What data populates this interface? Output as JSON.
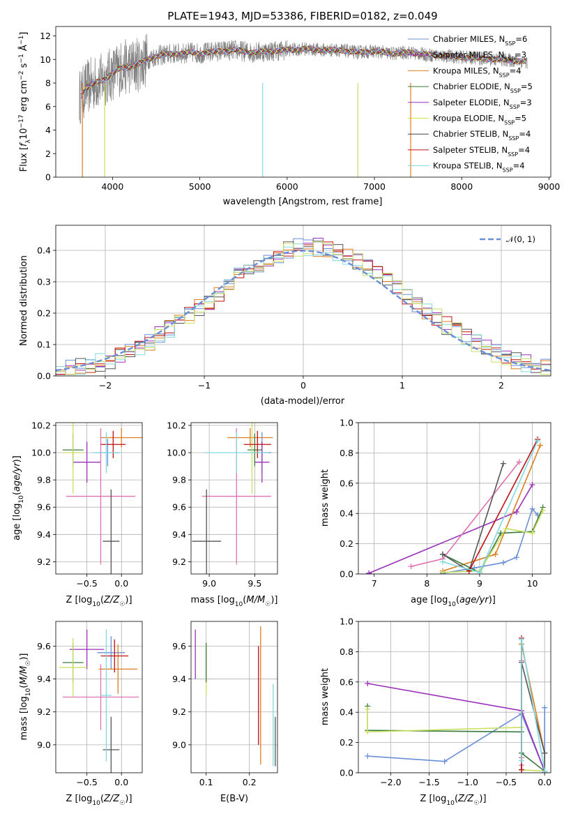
{
  "chart_data": [
    {
      "type": "line",
      "name": "spectrum",
      "title": "PLATE=1943, MJD=53386, FIBERID=0182, z=0.049",
      "xlabel": "wavelength [Angstrom, rest frame]",
      "ylabel": "Flux [f_λ10^-17 erg cm^-2 s^-1 Å^-1]",
      "xlim": [
        3350,
        9020
      ],
      "ylim": [
        0,
        12.8
      ],
      "xticks": [
        4000,
        5000,
        6000,
        7000,
        8000,
        9000
      ],
      "yticks": [
        0,
        2,
        4,
        6,
        8,
        10,
        12
      ],
      "grid": false,
      "legend_position": "top-right",
      "data_color": "#808080",
      "continuum": {
        "x": [
          3620,
          3650,
          3700,
          3800,
          3900,
          4000,
          4100,
          4200,
          4300,
          4400,
          4500,
          4600,
          4700,
          4800,
          4900,
          5000,
          5200,
          5400,
          5600,
          5800,
          6000,
          6200,
          6400,
          6600,
          6800,
          7000,
          7200,
          7400,
          7600,
          7800,
          8000,
          8200,
          8400,
          8600,
          8750
        ],
        "y": [
          6.8,
          7.0,
          7.6,
          8.0,
          8.3,
          8.8,
          9.3,
          9.4,
          9.6,
          10.0,
          10.3,
          10.4,
          10.5,
          10.5,
          10.6,
          10.5,
          10.7,
          10.8,
          10.6,
          10.7,
          10.8,
          10.9,
          10.8,
          10.8,
          10.6,
          10.7,
          10.5,
          10.6,
          10.4,
          10.3,
          10.2,
          10.1,
          10.0,
          9.9,
          9.8
        ]
      },
      "series": [
        {
          "name": "Chabrier MILES, N_SSP=6",
          "color": "#6a8fd8"
        },
        {
          "name": "Salpeter MILES, N_SSP=3",
          "color": "#9b30b8"
        },
        {
          "name": "Kroupa MILES, N_SSP=4",
          "color": "#e07d20"
        },
        {
          "name": "Chabrier ELODIE, N_SSP=5",
          "color": "#3a7a3a"
        },
        {
          "name": "Salpeter ELODIE, N_SSP=3",
          "color": "#9b30b8"
        },
        {
          "name": "Kroupa ELODIE, N_SSP=5",
          "color": "#d8e040"
        },
        {
          "name": "Chabrier STELIB, N_SSP=4",
          "color": "#444444"
        },
        {
          "name": "Salpeter STELIB, N_SSP=4",
          "color": "#c01010"
        },
        {
          "name": "Kroupa STELIB, N_SSP=4",
          "color": "#80d8e0"
        }
      ]
    },
    {
      "type": "line",
      "name": "residual-histogram",
      "xlabel": "(data-model)/error",
      "ylabel": "Normed distribution",
      "xlim": [
        -2.5,
        2.5
      ],
      "ylim": [
        0,
        0.48
      ],
      "xticks": [
        -2,
        -1,
        0,
        1,
        2
      ],
      "yticks": [
        0.0,
        0.1,
        0.2,
        0.3,
        0.4
      ],
      "grid": true,
      "legend_position": "top-right",
      "legend": "𝒩(0, 1)",
      "gauss_color": "#6a8fd8",
      "bin_width": 0.1,
      "colors": [
        "#6a8fd8",
        "#9b30b8",
        "#e07d20",
        "#555555",
        "#c01010",
        "#80d8e0",
        "#c8e060"
      ]
    },
    {
      "type": "scatter",
      "name": "Z-vs-age",
      "xlabel": "Z [log10(Z/Z☉)]",
      "ylabel": "age  [log10(age/yr)]",
      "xlim": [
        -0.95,
        0.3
      ],
      "ylim": [
        9.11,
        10.22
      ],
      "xticks": [
        -0.5,
        0.0
      ],
      "yticks": [
        9.2,
        9.4,
        9.6,
        9.8,
        10.0,
        10.2
      ],
      "grid": true,
      "points": [
        {
          "x": -0.2,
          "y": 10.0,
          "xerr": 0.18,
          "yerr": 0.1,
          "color": "#6a8fd8"
        },
        {
          "x": -0.5,
          "y": 9.93,
          "xerr": 0.2,
          "yerr": 0.15,
          "color": "#9b30b8"
        },
        {
          "x": 0.0,
          "y": 10.11,
          "xerr": 0.3,
          "yerr": 0.07,
          "color": "#e07d20"
        },
        {
          "x": -0.7,
          "y": 10.02,
          "xerr": 0.15,
          "yerr": 0.12,
          "color": "#3a7a3a"
        },
        {
          "x": -0.3,
          "y": 9.68,
          "xerr": 0.5,
          "yerr": 0.5,
          "color": "#e070b0"
        },
        {
          "x": -0.7,
          "y": 10.0,
          "xerr": 0.15,
          "yerr": 0.3,
          "color": "#c8e060"
        },
        {
          "x": -0.15,
          "y": 9.35,
          "xerr": 0.12,
          "yerr": 0.38,
          "color": "#555555"
        },
        {
          "x": -0.12,
          "y": 10.06,
          "xerr": 0.18,
          "yerr": 0.1,
          "color": "#c01010"
        },
        {
          "x": -0.22,
          "y": 10.0,
          "xerr": 0.2,
          "yerr": 0.15,
          "color": "#80d8e0"
        }
      ]
    },
    {
      "type": "scatter",
      "name": "mass-vs-age",
      "xlabel": "mass [log10(M/M☉)]",
      "xlim": [
        8.8,
        9.75
      ],
      "ylim": [
        9.11,
        10.22
      ],
      "xticks": [
        9.0,
        9.5
      ],
      "yticks": [
        9.2,
        9.4,
        9.6,
        9.8,
        10.0,
        10.2
      ],
      "grid": true,
      "points": [
        {
          "x": 9.58,
          "y": 10.0,
          "xerr": 0.1,
          "yerr": 0.15,
          "color": "#6a8fd8"
        },
        {
          "x": 9.58,
          "y": 9.93,
          "xerr": 0.08,
          "yerr": 0.15,
          "color": "#9b30b8"
        },
        {
          "x": 9.45,
          "y": 10.11,
          "xerr": 0.25,
          "yerr": 0.07,
          "color": "#e07d20"
        },
        {
          "x": 9.5,
          "y": 10.02,
          "xerr": 0.08,
          "yerr": 0.12,
          "color": "#3a7a3a"
        },
        {
          "x": 9.3,
          "y": 9.68,
          "xerr": 0.38,
          "yerr": 0.5,
          "color": "#e070b0"
        },
        {
          "x": 9.47,
          "y": 10.0,
          "xerr": 0.1,
          "yerr": 0.3,
          "color": "#c8e060"
        },
        {
          "x": 8.97,
          "y": 9.35,
          "xerr": 0.16,
          "yerr": 0.38,
          "color": "#555555"
        },
        {
          "x": 9.53,
          "y": 10.06,
          "xerr": 0.15,
          "yerr": 0.1,
          "color": "#c01010"
        },
        {
          "x": 9.3,
          "y": 10.0,
          "xerr": 0.35,
          "yerr": 0.15,
          "color": "#80d8e0"
        }
      ]
    },
    {
      "type": "line",
      "name": "age-weights",
      "xlabel": "age  [log10(age/yr)]",
      "ylabel": "mass weight",
      "xlim": [
        6.7,
        10.35
      ],
      "ylim": [
        0,
        1
      ],
      "xticks": [
        7,
        8,
        9,
        10
      ],
      "yticks": [
        0.0,
        0.2,
        0.4,
        0.6,
        0.8,
        1.0
      ],
      "grid": true,
      "series": [
        {
          "color": "#6a8fd8",
          "x": [
            8.3,
            8.9,
            9.45,
            9.7,
            10.0,
            10.1
          ],
          "y": [
            0.005,
            0.04,
            0.075,
            0.11,
            0.43,
            0.39
          ]
        },
        {
          "color": "#9b30b8",
          "x": [
            6.9,
            9.7,
            10.0
          ],
          "y": [
            0.005,
            0.41,
            0.59
          ]
        },
        {
          "color": "#e07d20",
          "x": [
            8.3,
            9.3,
            10.15
          ],
          "y": [
            0.02,
            0.13,
            0.85
          ]
        },
        {
          "color": "#3a7a3a",
          "x": [
            8.3,
            9.0,
            9.4,
            10.0,
            10.2
          ],
          "y": [
            0.13,
            0.01,
            0.27,
            0.28,
            0.44
          ]
        },
        {
          "color": "#e070b0",
          "x": [
            7.7,
            8.3,
            9.75
          ],
          "y": [
            0.05,
            0.1,
            0.74
          ]
        },
        {
          "color": "#c8e060",
          "x": [
            8.3,
            9.0,
            9.5,
            10.0,
            10.2
          ],
          "y": [
            0.01,
            0.02,
            0.3,
            0.27,
            0.42
          ]
        },
        {
          "color": "#555555",
          "x": [
            8.3,
            8.8,
            9.45
          ],
          "y": [
            0.13,
            0.02,
            0.73
          ]
        },
        {
          "color": "#c01010",
          "x": [
            8.8,
            10.1
          ],
          "y": [
            0.02,
            0.89
          ]
        },
        {
          "color": "#80d8e0",
          "x": [
            8.3,
            9.0,
            10.1
          ],
          "y": [
            0.08,
            0.01,
            0.88
          ]
        }
      ]
    },
    {
      "type": "scatter",
      "name": "Z-vs-mass",
      "xlabel": "Z [log10(Z/Z☉)]",
      "ylabel": "mass [log10(M/M☉)]",
      "xlim": [
        -0.95,
        0.3
      ],
      "ylim": [
        8.83,
        9.75
      ],
      "xticks": [
        -0.5,
        0.0
      ],
      "yticks": [
        9.0,
        9.2,
        9.4,
        9.6
      ],
      "grid": true,
      "points": [
        {
          "x": -0.15,
          "y": 9.56,
          "xerr": 0.2,
          "yerr": 0.1,
          "color": "#6a8fd8"
        },
        {
          "x": -0.5,
          "y": 9.58,
          "xerr": 0.25,
          "yerr": 0.12,
          "color": "#9b30b8"
        },
        {
          "x": -0.05,
          "y": 9.46,
          "xerr": 0.28,
          "yerr": 0.15,
          "color": "#e07d20"
        },
        {
          "x": -0.7,
          "y": 9.5,
          "xerr": 0.15,
          "yerr": 0.12,
          "color": "#3a7a3a"
        },
        {
          "x": -0.3,
          "y": 9.29,
          "xerr": 0.55,
          "yerr": 0.2,
          "color": "#e070b0"
        },
        {
          "x": -0.7,
          "y": 9.47,
          "xerr": 0.2,
          "yerr": 0.18,
          "color": "#c8e060"
        },
        {
          "x": -0.15,
          "y": 8.97,
          "xerr": 0.12,
          "yerr": 0.2,
          "color": "#555555"
        },
        {
          "x": -0.1,
          "y": 9.54,
          "xerr": 0.2,
          "yerr": 0.1,
          "color": "#c01010"
        },
        {
          "x": -0.22,
          "y": 9.3,
          "xerr": 0.08,
          "yerr": 0.4,
          "color": "#80d8e0"
        }
      ]
    },
    {
      "type": "scatter",
      "name": "EBV-vs-mass",
      "xlabel": "E(B-V)",
      "xlim": [
        0.065,
        0.265
      ],
      "ylim": [
        8.83,
        9.75
      ],
      "xticks": [
        0.1,
        0.2
      ],
      "yticks": [
        9.0,
        9.2,
        9.4,
        9.6
      ],
      "grid": true,
      "points": [
        {
          "x": 0.075,
          "y": 9.55,
          "yerr": 0.15,
          "color": "#9b30b8"
        },
        {
          "x": 0.1,
          "y": 9.46,
          "yerr": 0.16,
          "color": "#c8e060"
        },
        {
          "x": 0.1,
          "y": 9.5,
          "yerr": 0.12,
          "color": "#3a7a3a"
        },
        {
          "x": 0.221,
          "y": 9.3,
          "yerr": 0.3,
          "color": "#c01010"
        },
        {
          "x": 0.226,
          "y": 9.3,
          "yerr": 0.42,
          "color": "#e07d20"
        },
        {
          "x": 0.255,
          "y": 9.12,
          "yerr": 0.25,
          "color": "#80d8e0"
        },
        {
          "x": 0.26,
          "y": 9.02,
          "yerr": 0.15,
          "color": "#555555"
        }
      ]
    },
    {
      "type": "line",
      "name": "Z-weights",
      "xlabel": "Z [log10(Z/Z☉)]",
      "ylabel": "mass weight",
      "xlim": [
        -2.42,
        0.08
      ],
      "ylim": [
        0,
        1
      ],
      "xticks": [
        -2.0,
        -1.5,
        -1.0,
        -0.5,
        0.0
      ],
      "yticks": [
        0.0,
        0.2,
        0.4,
        0.6,
        0.8,
        1.0
      ],
      "grid": true,
      "series": [
        {
          "color": "#6a8fd8",
          "x": [
            -2.3,
            -1.3,
            -0.3,
            0.0,
            0.0
          ],
          "y": [
            0.11,
            0.075,
            0.39,
            0.01,
            0.43
          ]
        },
        {
          "color": "#9b30b8",
          "x": [
            -2.3,
            -0.3,
            0.0
          ],
          "y": [
            0.59,
            0.41,
            0.01
          ]
        },
        {
          "color": "#e07d20",
          "x": [
            -0.3,
            -0.3,
            0.0,
            0.0
          ],
          "y": [
            0.02,
            0.85,
            0.13,
            0.0
          ]
        },
        {
          "color": "#3a7a3a",
          "x": [
            -2.3,
            -2.3,
            -0.3,
            -0.3,
            0.0
          ],
          "y": [
            0.44,
            0.28,
            0.27,
            0.13,
            0.01
          ]
        },
        {
          "color": "#e070b0",
          "x": [
            -0.3,
            -0.3,
            -0.3
          ],
          "y": [
            0.05,
            0.1,
            0.74
          ]
        },
        {
          "color": "#c8e060",
          "x": [
            -2.3,
            -2.3,
            -0.3,
            -0.3,
            0.0
          ],
          "y": [
            0.42,
            0.27,
            0.3,
            0.02,
            0.01
          ]
        },
        {
          "color": "#555555",
          "x": [
            -0.3,
            -0.3,
            0.0,
            0.0
          ],
          "y": [
            0.02,
            0.73,
            0.13,
            0.0
          ]
        },
        {
          "color": "#c01010",
          "x": [
            -0.3,
            -0.3
          ],
          "y": [
            0.89,
            0.02
          ]
        },
        {
          "color": "#80d8e0",
          "x": [
            -0.3,
            -0.3,
            0.0
          ],
          "y": [
            0.08,
            0.88,
            0.01
          ]
        }
      ]
    }
  ]
}
